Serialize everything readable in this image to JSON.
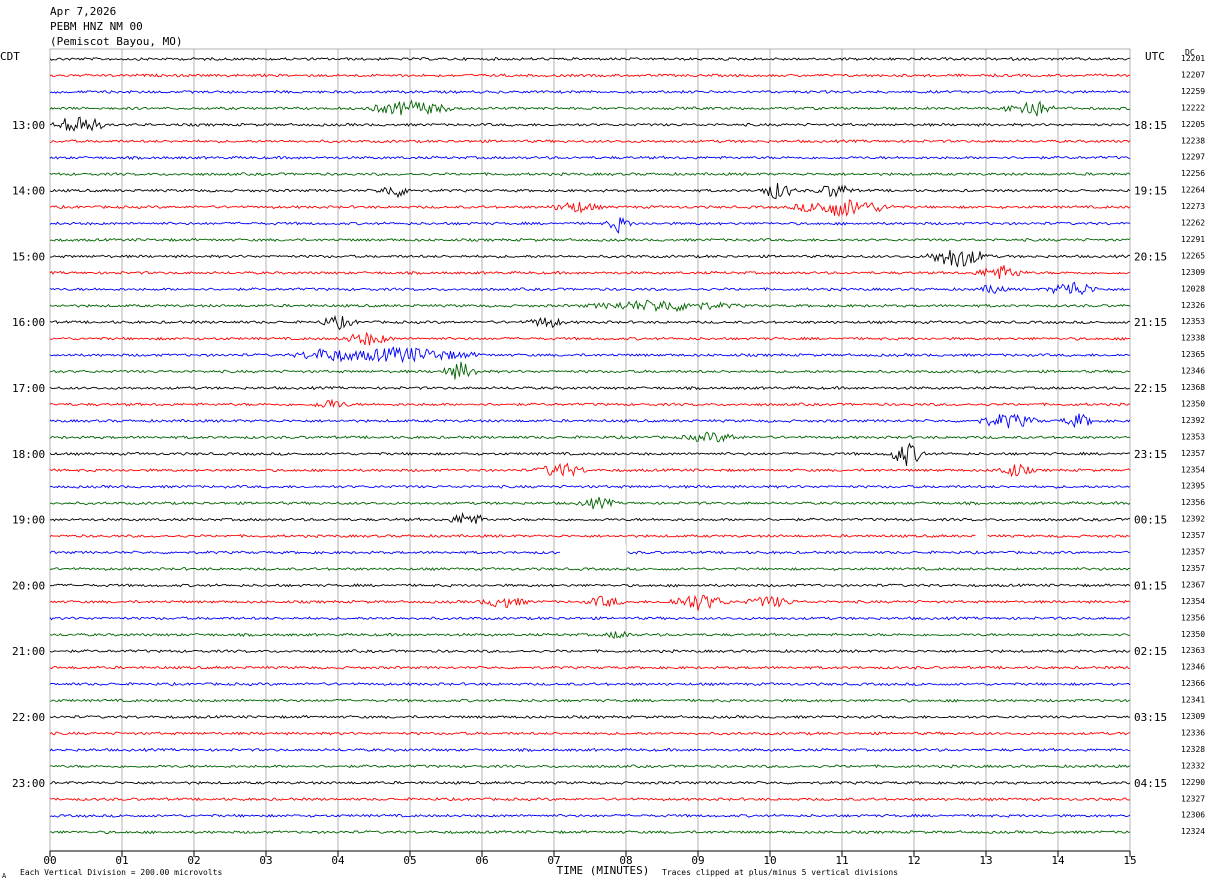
{
  "header": {
    "date": "Apr 7,2026",
    "station": "PEBM HNZ NM 00",
    "location": "(Pemiscot Bayou, MO)"
  },
  "left_tz": "CDT",
  "right_tz": "UTC",
  "dc_label": "DC",
  "footer": {
    "scale_marker": "A",
    "scale_note": "Each Vertical Division =  200.00 microvolts",
    "clip_note": "Traces clipped at plus/minus 5 vertical divisions"
  },
  "colors": {
    "trace": [
      "#000000",
      "#ff0000",
      "#0000ff",
      "#006400"
    ],
    "grid": "#808080"
  },
  "chart_data": {
    "type": "line",
    "title": "PEBM HNZ NM 00",
    "xlabel": "TIME (MINUTES)",
    "xlim": [
      0,
      15
    ],
    "x_ticks": [
      "00",
      "01",
      "02",
      "03",
      "04",
      "05",
      "06",
      "07",
      "08",
      "09",
      "10",
      "11",
      "12",
      "13",
      "14",
      "15"
    ],
    "left_time_labels": [
      "13:00",
      "14:00",
      "15:00",
      "16:00",
      "17:00",
      "18:00",
      "19:00",
      "20:00",
      "21:00",
      "22:00",
      "23:00"
    ],
    "right_time_labels": [
      "18:15",
      "19:15",
      "20:15",
      "21:15",
      "22:15",
      "23:15",
      "00:15",
      "01:15",
      "02:15",
      "03:15",
      "04:15"
    ],
    "first_labeled_row": 4,
    "rows_per_label": 4,
    "dc_offsets": [
      "12201",
      "12207",
      "12259",
      "12222",
      "12205",
      "12238",
      "12297",
      "12256",
      "12264",
      "12273",
      "12262",
      "12291",
      "12265",
      "12309",
      "12028",
      "12326",
      "12353",
      "12338",
      "12365",
      "12346",
      "12368",
      "12350",
      "12392",
      "12353",
      "12357",
      "12354",
      "12395",
      "12356",
      "12392",
      "12357",
      "12357",
      "12357",
      "12367",
      "12354",
      "12356",
      "12350",
      "12363",
      "12346",
      "12366",
      "12341",
      "12309",
      "12336",
      "12328",
      "12332",
      "12290",
      "12327",
      "12306",
      "12324"
    ],
    "gaps": [
      {
        "row": 30,
        "start_min": 7.1,
        "end_min": 8.0
      },
      {
        "row": 29,
        "start_min": 12.86,
        "end_min": 13.0
      }
    ],
    "events": [
      {
        "row": 3,
        "minute": 5.0,
        "amp": 0.8,
        "dur_min": 0.7
      },
      {
        "row": 3,
        "minute": 13.6,
        "amp": 1.0,
        "dur_min": 0.4
      },
      {
        "row": 4,
        "minute": 0.4,
        "amp": 1.2,
        "dur_min": 0.4
      },
      {
        "row": 8,
        "minute": 4.8,
        "amp": 0.7,
        "dur_min": 0.3
      },
      {
        "row": 8,
        "minute": 10.1,
        "amp": 0.9,
        "dur_min": 0.3
      },
      {
        "row": 8,
        "minute": 10.9,
        "amp": 0.8,
        "dur_min": 0.3
      },
      {
        "row": 9,
        "minute": 11.0,
        "amp": 1.0,
        "dur_min": 0.8
      },
      {
        "row": 9,
        "minute": 7.3,
        "amp": 0.6,
        "dur_min": 0.4
      },
      {
        "row": 10,
        "minute": 7.9,
        "amp": 0.9,
        "dur_min": 0.2
      },
      {
        "row": 12,
        "minute": 12.6,
        "amp": 1.2,
        "dur_min": 0.5
      },
      {
        "row": 13,
        "minute": 13.2,
        "amp": 0.8,
        "dur_min": 0.4
      },
      {
        "row": 14,
        "minute": 14.2,
        "amp": 0.9,
        "dur_min": 0.4
      },
      {
        "row": 14,
        "minute": 13.1,
        "amp": 0.6,
        "dur_min": 0.2
      },
      {
        "row": 15,
        "minute": 8.5,
        "amp": 0.6,
        "dur_min": 1.2
      },
      {
        "row": 16,
        "minute": 4.0,
        "amp": 0.7,
        "dur_min": 0.3
      },
      {
        "row": 16,
        "minute": 6.9,
        "amp": 0.6,
        "dur_min": 0.3
      },
      {
        "row": 17,
        "minute": 4.4,
        "amp": 0.7,
        "dur_min": 0.4
      },
      {
        "row": 18,
        "minute": 4.9,
        "amp": 0.8,
        "dur_min": 1.2
      },
      {
        "row": 18,
        "minute": 3.8,
        "amp": 0.6,
        "dur_min": 0.5
      },
      {
        "row": 19,
        "minute": 5.7,
        "amp": 1.0,
        "dur_min": 0.3
      },
      {
        "row": 21,
        "minute": 3.9,
        "amp": 0.5,
        "dur_min": 0.3
      },
      {
        "row": 22,
        "minute": 13.3,
        "amp": 0.8,
        "dur_min": 0.5
      },
      {
        "row": 22,
        "minute": 14.3,
        "amp": 0.7,
        "dur_min": 0.3
      },
      {
        "row": 23,
        "minute": 9.2,
        "amp": 0.5,
        "dur_min": 0.5
      },
      {
        "row": 24,
        "minute": 11.9,
        "amp": 1.3,
        "dur_min": 0.3
      },
      {
        "row": 25,
        "minute": 7.1,
        "amp": 0.8,
        "dur_min": 0.4
      },
      {
        "row": 25,
        "minute": 13.4,
        "amp": 0.7,
        "dur_min": 0.3
      },
      {
        "row": 27,
        "minute": 7.6,
        "amp": 0.6,
        "dur_min": 0.3
      },
      {
        "row": 28,
        "minute": 5.8,
        "amp": 0.8,
        "dur_min": 0.3
      },
      {
        "row": 33,
        "minute": 6.3,
        "amp": 0.6,
        "dur_min": 0.4
      },
      {
        "row": 33,
        "minute": 7.7,
        "amp": 0.6,
        "dur_min": 0.3
      },
      {
        "row": 33,
        "minute": 9.0,
        "amp": 0.9,
        "dur_min": 0.5
      },
      {
        "row": 33,
        "minute": 10.0,
        "amp": 0.6,
        "dur_min": 0.4
      },
      {
        "row": 35,
        "minute": 7.9,
        "amp": 0.5,
        "dur_min": 0.2
      }
    ]
  }
}
